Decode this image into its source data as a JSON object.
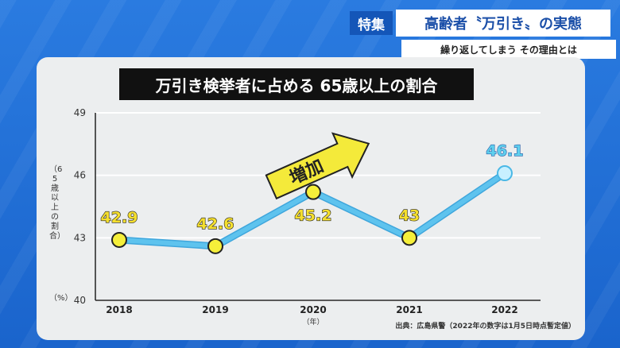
{
  "header": {
    "tag": "特集",
    "title": "高齢者〝万引き〟の実態",
    "subtitle": "繰り返してしまう その理由とは"
  },
  "source": "出典：広島県警（2022年の数字は1月5日時点暫定値）",
  "chart_data": {
    "type": "line",
    "title": "万引き検挙者に占める 65歳以上の割合",
    "ylabel": "（65歳以上の割合）",
    "yunit": "（%）",
    "xunit": "（年）",
    "categories": [
      "2018",
      "2019",
      "2020",
      "2021",
      "2022"
    ],
    "values": [
      42.9,
      42.6,
      45.2,
      43,
      46.1
    ],
    "data_labels": [
      "42.9",
      "42.6",
      "45.2",
      "43",
      "46.1"
    ],
    "yticks": [
      40,
      43,
      46,
      49
    ],
    "ylim": [
      40,
      49
    ],
    "grid": true,
    "annotation": "増加",
    "colors": {
      "line": "#5ec3ee",
      "marker": "#f5ef3a",
      "highlight": "#5fd0ee"
    }
  }
}
